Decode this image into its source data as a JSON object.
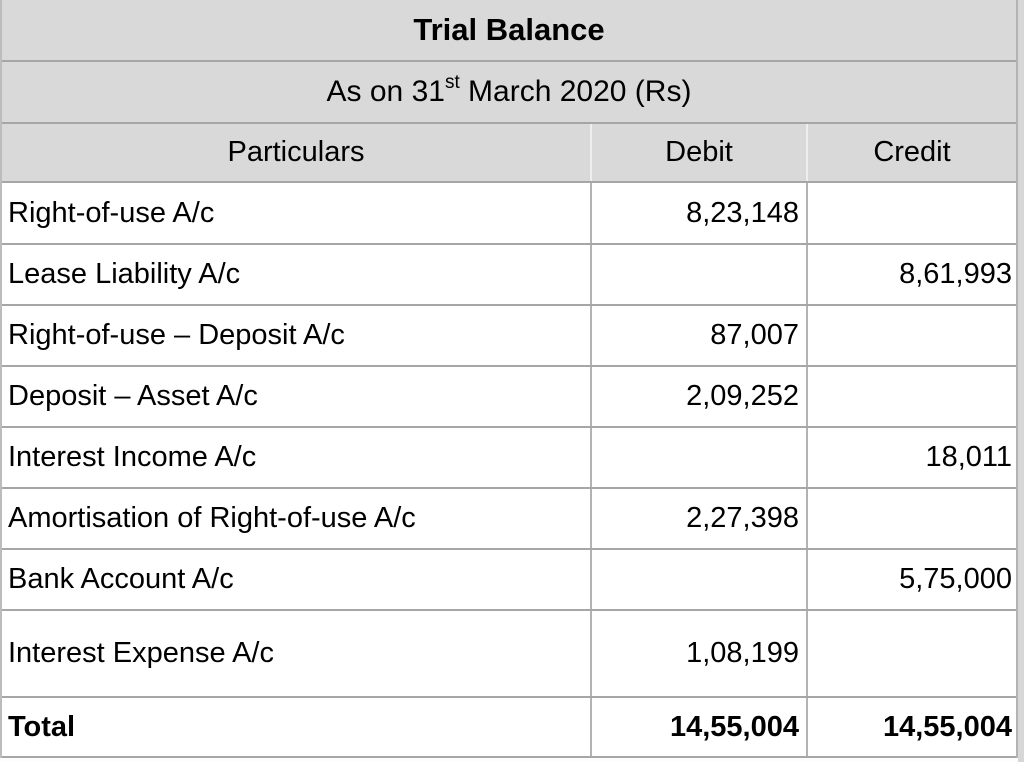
{
  "table": {
    "title": "Trial Balance",
    "subtitle": {
      "prefix": "As on 31",
      "superscript": "st",
      "suffix": " March 2020 (Rs)"
    },
    "columns": [
      "Particulars",
      "Debit",
      "Credit"
    ],
    "rows": [
      {
        "particulars": "Right-of-use A/c",
        "debit": "8,23,148",
        "credit": ""
      },
      {
        "particulars": "Lease Liability A/c",
        "debit": "",
        "credit": "8,61,993"
      },
      {
        "particulars": "Right-of-use – Deposit A/c",
        "debit": "87,007",
        "credit": ""
      },
      {
        "particulars": "Deposit – Asset A/c",
        "debit": "2,09,252",
        "credit": ""
      },
      {
        "particulars": "Interest Income A/c",
        "debit": "",
        "credit": "18,011"
      },
      {
        "particulars": "Amortisation of Right-of-use A/c",
        "debit": "2,27,398",
        "credit": ""
      },
      {
        "particulars": "Bank Account A/c",
        "debit": "",
        "credit": "5,75,000"
      },
      {
        "particulars": "Interest Expense A/c",
        "debit": "1,08,199",
        "credit": ""
      }
    ],
    "total": {
      "label": "Total",
      "debit": "14,55,004",
      "credit": "14,55,004"
    },
    "colors": {
      "header_bg": "#d9d9d9",
      "grid_line": "#a6a6a6",
      "column_line": "#b3b3b3",
      "text": "#000000"
    }
  }
}
